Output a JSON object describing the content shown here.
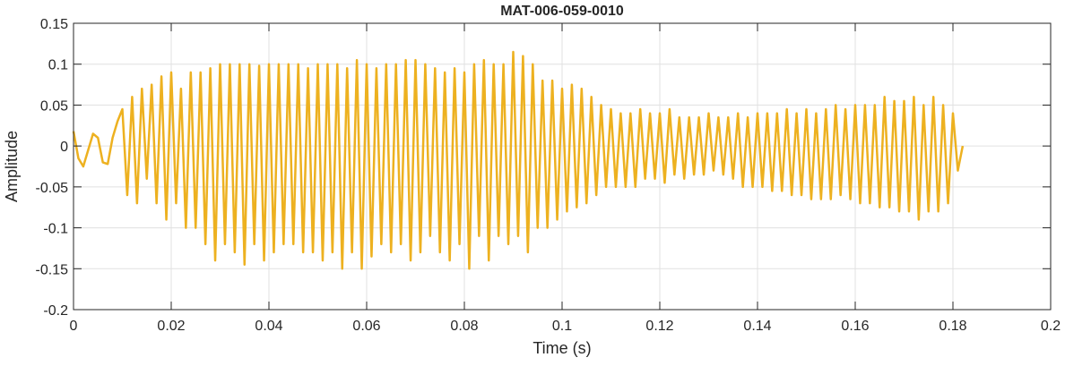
{
  "chart_data": {
    "type": "line",
    "title": "MAT-006-059-0010",
    "xlabel": "Time (s)",
    "ylabel": "Amplitude",
    "xlim": [
      0,
      0.2
    ],
    "ylim": [
      -0.2,
      0.15
    ],
    "grid": true,
    "series_color": "#EDB120",
    "x_ticks": [
      0,
      0.02,
      0.04,
      0.06,
      0.08,
      0.1,
      0.12,
      0.14,
      0.16,
      0.18,
      0.2
    ],
    "x_tick_labels": [
      "0",
      "0.02",
      "0.04",
      "0.06",
      "0.08",
      "0.1",
      "0.12",
      "0.14",
      "0.16",
      "0.18",
      "0.2"
    ],
    "y_ticks": [
      -0.2,
      -0.15,
      -0.1,
      -0.05,
      0,
      0.05,
      0.1,
      0.15
    ],
    "y_tick_labels": [
      "-0.2",
      "-0.15",
      "-0.1",
      "-0.05",
      "0",
      "0.05",
      "0.1",
      "0.15"
    ],
    "series": [
      {
        "x": [
          0,
          0.001,
          0.002,
          0.003,
          0.004,
          0.005,
          0.006,
          0.007,
          0.008,
          0.009,
          0.01,
          0.011,
          0.012,
          0.013,
          0.014,
          0.015,
          0.016,
          0.017,
          0.018,
          0.019,
          0.02,
          0.021,
          0.022,
          0.023,
          0.024,
          0.025,
          0.026,
          0.027,
          0.028,
          0.029,
          0.03,
          0.031,
          0.032,
          0.033,
          0.034,
          0.035,
          0.036,
          0.037,
          0.038,
          0.039,
          0.04,
          0.041,
          0.042,
          0.043,
          0.044,
          0.045,
          0.046,
          0.047,
          0.048,
          0.049,
          0.05,
          0.051,
          0.052,
          0.053,
          0.054,
          0.055,
          0.056,
          0.057,
          0.058,
          0.059,
          0.06,
          0.061,
          0.062,
          0.063,
          0.064,
          0.065,
          0.066,
          0.067,
          0.068,
          0.069,
          0.07,
          0.071,
          0.072,
          0.073,
          0.074,
          0.075,
          0.076,
          0.077,
          0.078,
          0.079,
          0.08,
          0.081,
          0.082,
          0.083,
          0.084,
          0.085,
          0.086,
          0.087,
          0.088,
          0.089,
          0.09,
          0.091,
          0.092,
          0.093,
          0.094,
          0.095,
          0.096,
          0.097,
          0.098,
          0.099,
          0.1,
          0.101,
          0.102,
          0.103,
          0.104,
          0.105,
          0.106,
          0.107,
          0.108,
          0.109,
          0.11,
          0.111,
          0.112,
          0.113,
          0.114,
          0.115,
          0.116,
          0.117,
          0.118,
          0.119,
          0.12,
          0.121,
          0.122,
          0.123,
          0.124,
          0.125,
          0.126,
          0.127,
          0.128,
          0.129,
          0.13,
          0.131,
          0.132,
          0.133,
          0.134,
          0.135,
          0.136,
          0.137,
          0.138,
          0.139,
          0.14,
          0.141,
          0.142,
          0.143,
          0.144,
          0.145,
          0.146,
          0.147,
          0.148,
          0.149,
          0.15,
          0.151,
          0.152,
          0.153,
          0.154,
          0.155,
          0.156,
          0.157,
          0.158,
          0.159,
          0.16,
          0.161,
          0.162,
          0.163,
          0.164,
          0.165,
          0.166,
          0.167,
          0.168,
          0.169,
          0.17,
          0.171,
          0.172,
          0.173,
          0.174,
          0.175,
          0.176,
          0.177,
          0.178,
          0.179,
          0.18,
          0.181,
          0.182
        ],
        "y": [
          0.018,
          -0.015,
          -0.025,
          -0.005,
          0.015,
          0.01,
          -0.02,
          -0.022,
          0.01,
          0.03,
          0.045,
          -0.06,
          0.06,
          -0.07,
          0.07,
          -0.04,
          0.075,
          -0.07,
          0.085,
          -0.09,
          0.09,
          -0.07,
          0.07,
          -0.1,
          0.09,
          -0.1,
          0.09,
          -0.12,
          0.095,
          -0.14,
          0.1,
          -0.12,
          0.1,
          -0.13,
          0.1,
          -0.145,
          0.1,
          -0.12,
          0.098,
          -0.14,
          0.1,
          -0.13,
          0.1,
          -0.12,
          0.1,
          -0.12,
          0.1,
          -0.13,
          0.095,
          -0.13,
          0.1,
          -0.14,
          0.1,
          -0.13,
          0.1,
          -0.15,
          0.095,
          -0.13,
          0.105,
          -0.15,
          0.1,
          -0.135,
          0.095,
          -0.12,
          0.1,
          -0.13,
          0.1,
          -0.12,
          0.105,
          -0.14,
          0.105,
          -0.13,
          0.1,
          -0.11,
          0.095,
          -0.13,
          0.09,
          -0.14,
          0.095,
          -0.12,
          0.09,
          -0.15,
          0.1,
          -0.11,
          0.105,
          -0.14,
          0.1,
          -0.11,
          0.1,
          -0.12,
          0.115,
          -0.11,
          0.11,
          -0.13,
          0.1,
          -0.1,
          0.08,
          -0.1,
          0.08,
          -0.09,
          0.07,
          -0.08,
          0.075,
          -0.075,
          0.07,
          -0.07,
          0.06,
          -0.06,
          0.05,
          -0.05,
          0.045,
          -0.05,
          0.04,
          -0.05,
          0.04,
          -0.05,
          0.045,
          -0.04,
          0.04,
          -0.04,
          0.04,
          -0.045,
          0.045,
          -0.035,
          0.035,
          -0.04,
          0.035,
          -0.035,
          0.035,
          -0.035,
          0.04,
          -0.03,
          0.035,
          -0.035,
          0.035,
          -0.04,
          0.04,
          -0.05,
          0.035,
          -0.05,
          0.04,
          -0.05,
          0.04,
          -0.055,
          0.04,
          -0.055,
          0.045,
          -0.06,
          0.04,
          -0.06,
          0.045,
          -0.065,
          0.04,
          -0.065,
          0.045,
          -0.065,
          0.05,
          -0.06,
          0.045,
          -0.065,
          0.05,
          -0.07,
          0.05,
          -0.07,
          0.05,
          -0.075,
          0.06,
          -0.075,
          0.055,
          -0.08,
          0.055,
          -0.08,
          0.06,
          -0.09,
          0.05,
          -0.08,
          0.06,
          -0.08,
          0.05,
          -0.07,
          0.04,
          -0.03,
          0.0
        ]
      }
    ]
  }
}
